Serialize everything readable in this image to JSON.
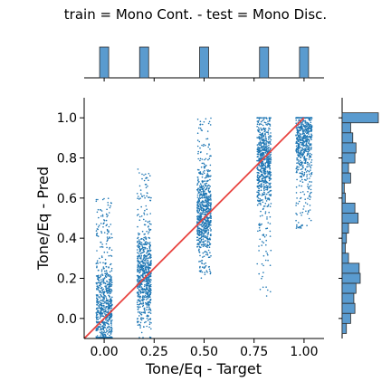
{
  "chart_data": {
    "type": "scatter",
    "title": "train = Mono Cont. - test = Mono Disc.",
    "xlabel": "Tone/Eq - Target",
    "ylabel": "Tone/Eq - Pred",
    "xlim": [
      -0.1,
      1.1
    ],
    "ylim": [
      -0.1,
      1.1
    ],
    "x_ticks": [
      0.0,
      0.25,
      0.5,
      0.75,
      1.0
    ],
    "x_tick_labels": [
      "0.00",
      "0.25",
      "0.50",
      "0.75",
      "1.00"
    ],
    "y_ticks": [
      0.0,
      0.2,
      0.4,
      0.6,
      0.8,
      1.0
    ],
    "y_tick_labels": [
      "0.0",
      "0.2",
      "0.4",
      "0.6",
      "0.8",
      "1.0"
    ],
    "reference_line": {
      "x": [
        -0.1,
        1.0
      ],
      "y": [
        -0.1,
        1.0
      ],
      "color": "#e8433f"
    },
    "point_color": "#1f77b4",
    "clusters": [
      {
        "target": 0.0,
        "pred_center": 0.05,
        "pred_range": [
          -0.1,
          0.6
        ],
        "jitter": 0.04
      },
      {
        "target": 0.2,
        "pred_center": 0.22,
        "pred_range": [
          -0.05,
          0.75
        ],
        "jitter": 0.035
      },
      {
        "target": 0.5,
        "pred_center": 0.52,
        "pred_range": [
          0.2,
          1.0
        ],
        "jitter": 0.035
      },
      {
        "target": 0.8,
        "pred_center": 0.78,
        "pred_range": [
          0.1,
          1.0
        ],
        "jitter": 0.035
      },
      {
        "target": 1.0,
        "pred_center": 0.92,
        "pred_range": [
          0.45,
          1.0
        ],
        "jitter": 0.04
      }
    ],
    "top_histogram": {
      "bins": [
        0.0,
        0.2,
        0.5,
        0.8,
        1.0
      ],
      "counts": [
        1,
        1,
        1,
        1,
        1
      ],
      "color": "#5a9bcf"
    },
    "right_histogram": {
      "bin_centers": [
        1.0,
        0.95,
        0.9,
        0.85,
        0.8,
        0.75,
        0.7,
        0.65,
        0.6,
        0.55,
        0.5,
        0.45,
        0.4,
        0.35,
        0.3,
        0.25,
        0.2,
        0.15,
        0.1,
        0.05,
        0.0,
        -0.05
      ],
      "counts": [
        34,
        8,
        10,
        13,
        12,
        6,
        8,
        2,
        3,
        12,
        15,
        6,
        4,
        3,
        6,
        16,
        17,
        13,
        11,
        12,
        8,
        4
      ],
      "color": "#5a9bcf"
    }
  }
}
